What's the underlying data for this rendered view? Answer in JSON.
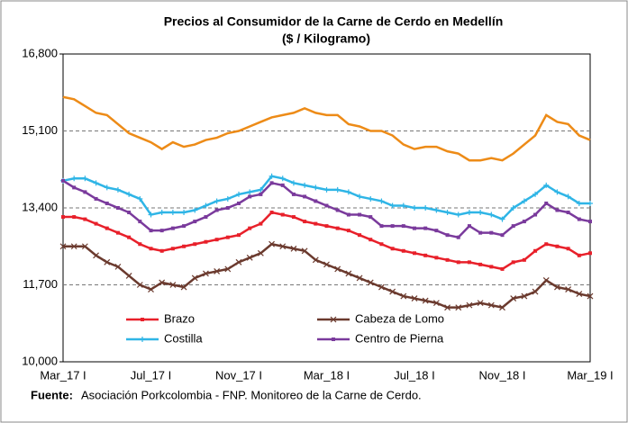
{
  "chart_data": {
    "type": "line",
    "title": "Precios al Consumidor  de la Carne de Cerdo en Medellín",
    "subtitle": "($ / Kilogramo)",
    "categories": [
      "Mar_17 I",
      null,
      null,
      null,
      null,
      null,
      null,
      null,
      "Jul_17 I",
      null,
      null,
      null,
      null,
      null,
      null,
      null,
      "Nov_17 I",
      null,
      null,
      null,
      null,
      null,
      null,
      null,
      "Mar_18 I",
      null,
      null,
      null,
      null,
      null,
      null,
      null,
      "Jul_18 I",
      null,
      null,
      null,
      null,
      null,
      null,
      null,
      "Nov_18 I",
      null,
      null,
      null,
      null,
      null,
      null,
      null,
      "Mar_19 I"
    ],
    "series": [
      {
        "color": "#ed8b17",
        "marker": "none",
        "values": [
          15850,
          15800,
          15650,
          15500,
          15450,
          15250,
          15050,
          14950,
          14850,
          14700,
          14850,
          14750,
          14800,
          14900,
          14950,
          15050,
          15100,
          15200,
          15300,
          15400,
          15450,
          15500,
          15600,
          15500,
          15450,
          15450,
          15250,
          15200,
          15100,
          15100,
          15000,
          14800,
          14700,
          14750,
          14750,
          14650,
          14600,
          14450,
          14450,
          14500,
          14450,
          14600,
          14800,
          15000,
          15450,
          15300,
          15250,
          15000,
          14900
        ]
      },
      {
        "name": "Costilla",
        "color": "#2fb5e6",
        "marker": "plus",
        "values": [
          14000,
          14050,
          14050,
          13950,
          13850,
          13800,
          13700,
          13600,
          13250,
          13300,
          13300,
          13300,
          13350,
          13450,
          13550,
          13600,
          13700,
          13750,
          13800,
          14100,
          14050,
          13950,
          13900,
          13850,
          13800,
          13800,
          13750,
          13650,
          13600,
          13550,
          13450,
          13450,
          13400,
          13400,
          13350,
          13300,
          13250,
          13300,
          13300,
          13250,
          13150,
          13400,
          13550,
          13700,
          13900,
          13750,
          13650,
          13500,
          13500
        ]
      },
      {
        "name": "Centro de Pierna",
        "color": "#7a3a9c",
        "marker": "square",
        "values": [
          14000,
          13850,
          13750,
          13600,
          13500,
          13400,
          13300,
          13100,
          12900,
          12900,
          12950,
          13000,
          13100,
          13200,
          13350,
          13400,
          13500,
          13650,
          13700,
          13950,
          13900,
          13700,
          13650,
          13550,
          13450,
          13350,
          13250,
          13250,
          13200,
          13000,
          13000,
          13000,
          12950,
          12950,
          12900,
          12800,
          12750,
          13000,
          12850,
          12850,
          12800,
          13000,
          13100,
          13250,
          13500,
          13350,
          13300,
          13150,
          13100
        ]
      },
      {
        "name": "Brazo",
        "color": "#e8202a",
        "marker": "square",
        "values": [
          13200,
          13200,
          13150,
          13050,
          12950,
          12850,
          12750,
          12600,
          12500,
          12450,
          12500,
          12550,
          12600,
          12650,
          12700,
          12750,
          12800,
          12950,
          13050,
          13300,
          13250,
          13200,
          13100,
          13050,
          13000,
          12950,
          12900,
          12800,
          12700,
          12600,
          12500,
          12450,
          12400,
          12350,
          12300,
          12250,
          12200,
          12200,
          12150,
          12100,
          12050,
          12200,
          12250,
          12450,
          12600,
          12550,
          12500,
          12350,
          12400
        ]
      },
      {
        "name": "Cabeza de Lomo",
        "color": "#6b3a2e",
        "marker": "cross",
        "values": [
          12550,
          12550,
          12550,
          12350,
          12200,
          12100,
          11900,
          11700,
          11600,
          11750,
          11700,
          11650,
          11850,
          11950,
          12000,
          12050,
          12200,
          12300,
          12400,
          12600,
          12550,
          12500,
          12450,
          12250,
          12150,
          12050,
          11950,
          11850,
          11750,
          11650,
          11550,
          11450,
          11400,
          11350,
          11300,
          11200,
          11200,
          11250,
          11300,
          11250,
          11200,
          11400,
          11450,
          11550,
          11800,
          11650,
          11600,
          11500,
          11450
        ]
      }
    ],
    "legend_order": [
      3,
      4,
      1,
      2
    ],
    "ylim": [
      10000,
      16800
    ],
    "yticks": [
      {
        "value": 10000,
        "label": "10,000"
      },
      {
        "value": 11700,
        "label": "11,700"
      },
      {
        "value": 13400,
        "label": "13,400"
      },
      {
        "value": 15100,
        "label": "15,100"
      },
      {
        "value": 16800,
        "label": "16,800"
      }
    ],
    "grid": true,
    "source": {
      "label": "Fuente:",
      "text": "Asociación Porkcolombia - FNP.  Monitoreo de la Carne de Cerdo."
    }
  }
}
